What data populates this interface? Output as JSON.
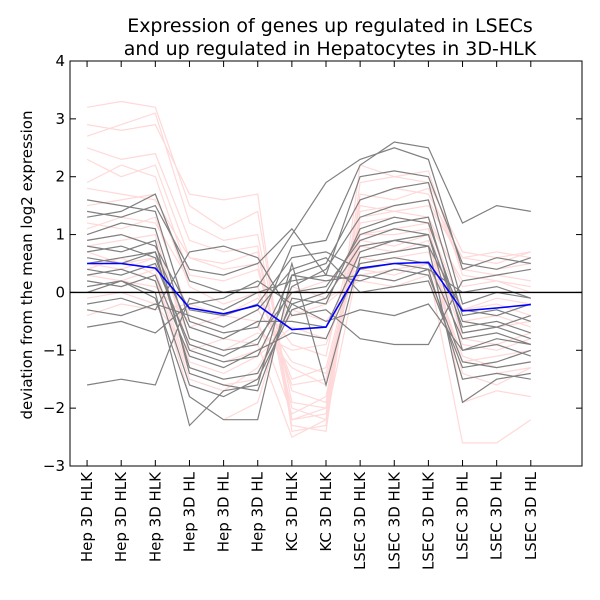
{
  "chart_data": {
    "type": "line",
    "title_lines": [
      "Expression of genes up regulated in LSECs",
      "and up regulated in Hepatocytes in 3D-HLK"
    ],
    "xlabel": "",
    "ylabel": "deviation from the mean log2 expression",
    "ylim": [
      -3,
      4
    ],
    "yticks": [
      "−3",
      "−2",
      "−1",
      "0",
      "1",
      "2",
      "3",
      "4"
    ],
    "categories": [
      "Hep 3D HLK",
      "Hep 3D HLK",
      "Hep 3D HLK",
      "Hep 3D HL",
      "Hep 3D HL",
      "Hep 3D HL",
      "KC 3D HLK",
      "KC 3D HLK",
      "LSEC 3D HLK",
      "LSEC 3D HLK",
      "LSEC 3D HLK",
      "LSEC 3D HL",
      "LSEC 3D HL",
      "LSEC 3D HL"
    ],
    "grid": false,
    "reference_line": 0,
    "colors": {
      "hepatocyte_genes": "#ffd9d9",
      "lsec_genes": "#808080",
      "mean": "#0000ff",
      "zero_line": "#000000"
    },
    "series_groups": [
      {
        "color_key": "hepatocyte_genes",
        "series": [
          {
            "values": [
              3.2,
              3.3,
              3.2,
              1.5,
              1.1,
              1.4,
              -2.2,
              -2.1,
              1.6,
              1.8,
              1.7,
              0.6,
              0.7,
              0.6
            ]
          },
          {
            "values": [
              2.9,
              2.8,
              2.9,
              1.7,
              1.6,
              1.7,
              -2.4,
              -2.3,
              1.9,
              2.0,
              1.9,
              0.7,
              0.6,
              0.7
            ]
          },
          {
            "values": [
              2.7,
              2.9,
              3.1,
              1.2,
              0.9,
              1.0,
              -1.9,
              -2.0,
              1.4,
              1.5,
              1.6,
              0.5,
              0.4,
              0.5
            ]
          },
          {
            "values": [
              2.3,
              2.0,
              2.2,
              0.6,
              0.5,
              0.7,
              -2.3,
              -2.4,
              1.7,
              1.6,
              1.8,
              0.4,
              0.3,
              0.4
            ]
          },
          {
            "values": [
              1.9,
              2.2,
              2.0,
              0.3,
              0.2,
              0.4,
              -1.7,
              -1.9,
              1.2,
              1.3,
              1.2,
              0.2,
              0.3,
              0.2
            ]
          },
          {
            "values": [
              1.5,
              1.6,
              1.7,
              0.1,
              -0.2,
              0.0,
              -1.5,
              -1.3,
              1.0,
              1.1,
              1.2,
              -0.3,
              -0.1,
              -0.2
            ]
          },
          {
            "values": [
              1.2,
              1.1,
              1.3,
              -0.4,
              -0.6,
              -0.3,
              -1.2,
              -1.4,
              0.9,
              0.8,
              1.0,
              -0.5,
              -0.4,
              -0.6
            ]
          },
          {
            "values": [
              0.9,
              1.0,
              0.8,
              -0.8,
              -1.0,
              -0.7,
              -1.0,
              -0.9,
              0.7,
              0.9,
              0.8,
              -0.7,
              -0.6,
              -0.5
            ]
          },
          {
            "values": [
              0.7,
              0.5,
              0.6,
              -1.2,
              -1.4,
              -1.1,
              -0.6,
              -0.8,
              0.5,
              0.6,
              0.7,
              -0.9,
              -1.0,
              -0.8
            ]
          },
          {
            "values": [
              0.4,
              0.6,
              0.3,
              -1.5,
              -1.7,
              -1.3,
              -0.3,
              -0.5,
              0.3,
              0.4,
              0.5,
              -1.2,
              -1.1,
              -1.0
            ]
          },
          {
            "values": [
              0.2,
              0.1,
              0.3,
              -1.8,
              -2.2,
              -1.9,
              0.1,
              -0.1,
              0.2,
              0.1,
              0.3,
              -1.5,
              -1.4,
              -1.3
            ]
          },
          {
            "values": [
              -0.1,
              0.0,
              -0.2,
              -1.0,
              -0.8,
              -0.9,
              -2.5,
              -2.2,
              0.6,
              0.5,
              0.4,
              -2.6,
              -2.6,
              -2.2
            ]
          },
          {
            "values": [
              0.5,
              0.4,
              0.6,
              -0.6,
              -0.4,
              -0.5,
              -2.1,
              -1.8,
              1.1,
              1.3,
              1.2,
              -1.9,
              -1.7,
              -1.8
            ]
          },
          {
            "values": [
              1.1,
              1.3,
              1.2,
              0.2,
              0.0,
              0.1,
              -1.6,
              -1.5,
              0.8,
              0.7,
              0.9,
              -1.4,
              -1.6,
              -1.3
            ]
          },
          {
            "values": [
              -0.4,
              -0.2,
              -0.3,
              -0.2,
              -0.4,
              -0.1,
              -0.9,
              -1.1,
              1.5,
              1.4,
              1.5,
              0.6,
              0.5,
              0.7
            ]
          },
          {
            "values": [
              0.8,
              0.9,
              1.0,
              -1.0,
              -1.2,
              -1.0,
              -0.4,
              -0.2,
              0.3,
              0.2,
              0.4,
              -0.3,
              -0.2,
              -0.4
            ]
          },
          {
            "values": [
              1.8,
              1.7,
              1.6,
              0.6,
              0.4,
              0.5,
              -2.0,
              -2.2,
              2.2,
              2.0,
              2.1,
              0.3,
              0.2,
              0.1
            ]
          },
          {
            "values": [
              0.0,
              0.2,
              0.1,
              -0.5,
              -0.7,
              -0.6,
              -1.3,
              -1.6,
              1.0,
              1.0,
              1.1,
              -0.8,
              -0.9,
              -0.7
            ]
          },
          {
            "values": [
              2.5,
              2.3,
              2.4,
              0.9,
              0.7,
              0.8,
              -2.2,
              -2.0,
              1.3,
              1.4,
              1.3,
              0.1,
              0.2,
              0.0
            ]
          },
          {
            "values": [
              0.3,
              0.2,
              0.4,
              -1.4,
              -1.6,
              -1.5,
              0.0,
              0.2,
              0.4,
              0.3,
              0.5,
              -1.1,
              -1.3,
              -1.2
            ]
          }
        ]
      },
      {
        "color_key": "lsec_genes",
        "series": [
          {
            "values": [
              1.6,
              1.5,
              1.4,
              -0.5,
              -0.7,
              -0.6,
              0.8,
              0.9,
              2.2,
              2.6,
              2.5,
              1.2,
              1.5,
              1.4
            ]
          },
          {
            "values": [
              1.3,
              1.4,
              1.7,
              0.2,
              0.0,
              0.1,
              1.0,
              1.9,
              2.3,
              2.5,
              2.3,
              0.4,
              0.6,
              0.5
            ]
          },
          {
            "values": [
              1.0,
              1.2,
              1.1,
              -0.8,
              -1.0,
              -0.9,
              0.3,
              0.5,
              1.6,
              1.8,
              1.9,
              -0.2,
              0.0,
              -0.1
            ]
          },
          {
            "values": [
              0.7,
              0.8,
              0.6,
              -1.0,
              -1.2,
              -1.1,
              0.1,
              0.4,
              1.3,
              1.5,
              1.6,
              -0.4,
              -0.3,
              -0.5
            ]
          },
          {
            "values": [
              0.5,
              0.6,
              0.7,
              -1.3,
              -1.5,
              -1.4,
              -0.2,
              0.0,
              1.0,
              1.2,
              1.3,
              -0.7,
              -0.6,
              -0.8
            ]
          },
          {
            "values": [
              0.3,
              0.4,
              0.2,
              -1.6,
              -1.8,
              -1.5,
              -0.3,
              -0.1,
              0.8,
              0.9,
              1.0,
              -1.0,
              -0.9,
              -1.1
            ]
          },
          {
            "values": [
              0.1,
              0.2,
              0.0,
              -2.3,
              -1.7,
              -1.6,
              0.5,
              -1.6,
              0.6,
              0.7,
              0.8,
              -1.9,
              -1.5,
              -1.4
            ]
          },
          {
            "values": [
              -1.6,
              -1.5,
              -1.6,
              -0.1,
              -0.3,
              0.0,
              0.2,
              0.3,
              0.2,
              0.4,
              0.3,
              -1.2,
              -1.3,
              -1.2
            ]
          },
          {
            "values": [
              -0.2,
              -0.1,
              -0.3,
              0.7,
              0.8,
              0.6,
              -0.4,
              -0.3,
              -0.8,
              -0.9,
              -0.9,
              0.2,
              0.3,
              0.4
            ]
          },
          {
            "values": [
              0.9,
              1.0,
              0.8,
              -0.3,
              -0.4,
              -0.2,
              0.6,
              0.7,
              0.4,
              0.5,
              0.4,
              0.0,
              0.1,
              -0.1
            ]
          },
          {
            "values": [
              0.6,
              0.5,
              0.7,
              -0.6,
              -0.8,
              -0.5,
              -0.5,
              -0.6,
              0.7,
              0.9,
              0.8,
              -0.3,
              -0.4,
              -0.2
            ]
          },
          {
            "values": [
              0.4,
              0.3,
              0.5,
              -0.9,
              -1.1,
              -0.8,
              0.0,
              0.1,
              0.9,
              1.1,
              1.0,
              -0.6,
              -0.5,
              -0.7
            ]
          },
          {
            "values": [
              0.2,
              0.1,
              0.3,
              -1.1,
              -1.3,
              -1.0,
              -0.7,
              -0.8,
              0.5,
              0.6,
              0.5,
              -0.8,
              -0.7,
              -0.9
            ]
          },
          {
            "values": [
              -0.3,
              -0.4,
              -0.2,
              -0.4,
              -0.6,
              -0.3,
              0.4,
              0.6,
              0.0,
              0.1,
              0.2,
              -1.3,
              -1.2,
              -1.0
            ]
          },
          {
            "values": [
              0.8,
              0.7,
              0.9,
              -1.4,
              -1.6,
              -1.7,
              -0.1,
              -0.2,
              1.1,
              1.3,
              1.2,
              -0.5,
              -0.6,
              -0.4
            ]
          },
          {
            "values": [
              1.4,
              1.3,
              1.5,
              0.4,
              0.3,
              0.5,
              1.1,
              0.3,
              2.0,
              2.1,
              2.0,
              0.5,
              0.4,
              0.6
            ]
          },
          {
            "values": [
              0.0,
              0.2,
              -0.1,
              -1.8,
              -2.2,
              -2.2,
              0.3,
              0.2,
              0.3,
              0.2,
              0.4,
              -1.5,
              -1.4,
              -1.5
            ]
          },
          {
            "values": [
              -0.6,
              -0.5,
              -0.7,
              -0.2,
              -0.1,
              0.2,
              -0.2,
              -0.5,
              -0.3,
              -0.4,
              -0.2,
              -1.0,
              -0.8,
              -0.9
            ]
          }
        ]
      },
      {
        "color_key": "mean",
        "series": [
          {
            "values": [
              0.5,
              0.5,
              0.42,
              -0.27,
              -0.37,
              -0.22,
              -0.64,
              -0.6,
              0.42,
              0.5,
              0.52,
              -0.32,
              -0.27,
              -0.21
            ]
          }
        ]
      }
    ]
  }
}
